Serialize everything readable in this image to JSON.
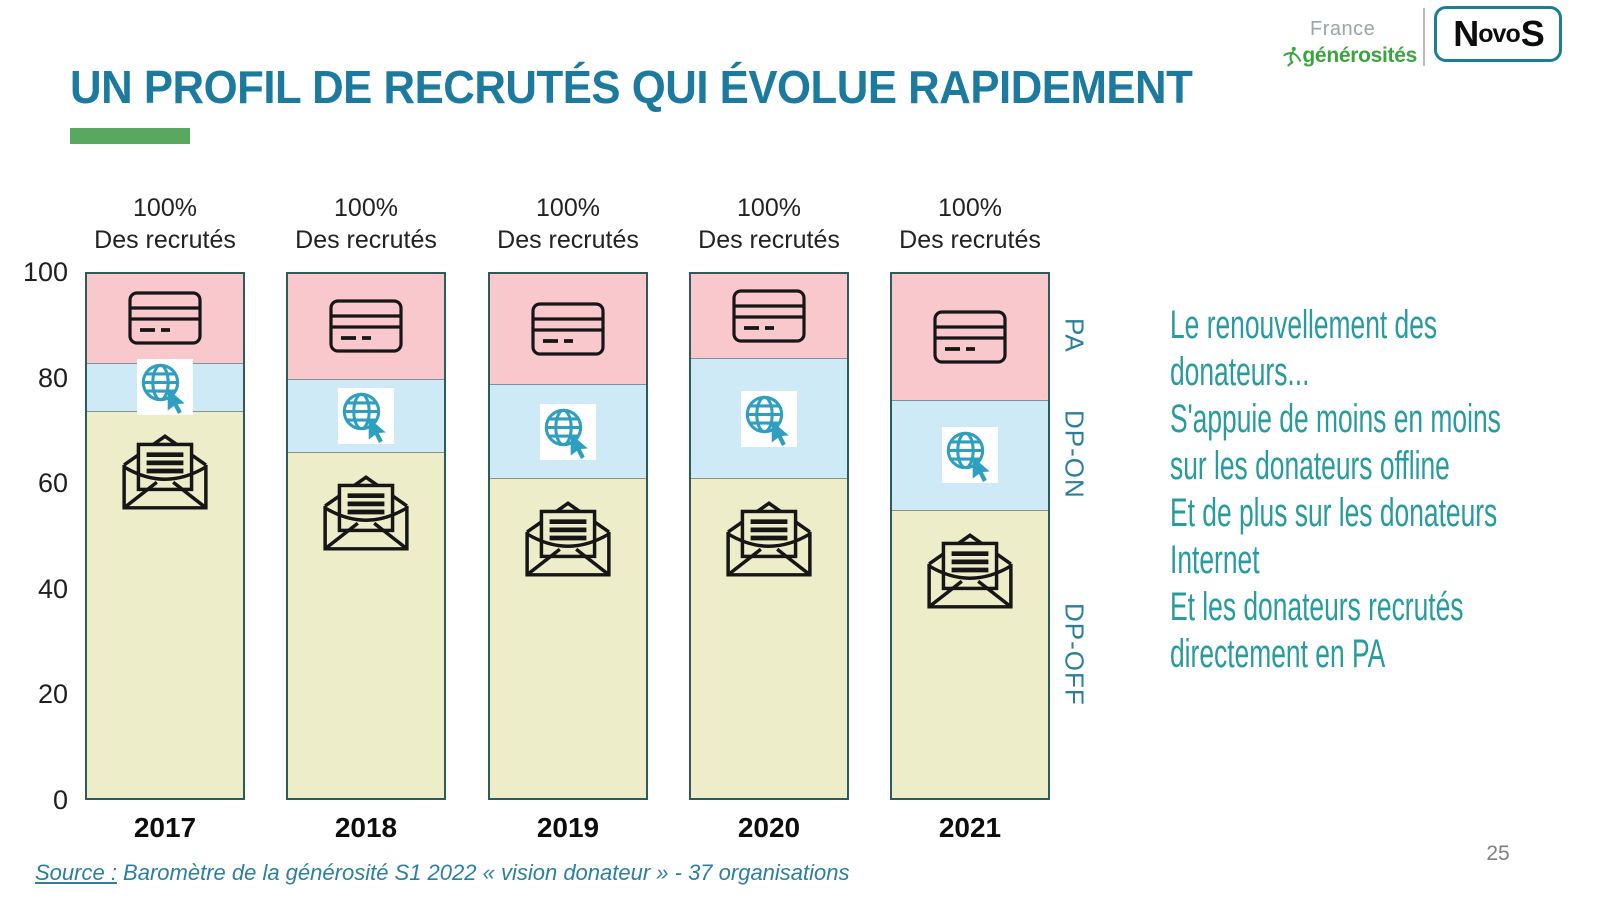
{
  "slide": {
    "title": "UN PROFIL DE RECRUTÉS QUI ÉVOLUE RAPIDEMENT",
    "page_number": "25",
    "source_label": "Source :",
    "source_text": " Baromètre de la générosité S1 2022 « vision donateur » - 37 organisations"
  },
  "logos": {
    "france": "France",
    "generosites": "générosités",
    "novos_parts": [
      "N",
      "ovo",
      "S"
    ]
  },
  "chart_data": {
    "type": "bar",
    "stacked": true,
    "title": "",
    "categories": [
      "2017",
      "2018",
      "2019",
      "2020",
      "2021"
    ],
    "series": [
      {
        "name": "DP-OFF",
        "icon": "open-envelope",
        "color": "#ededc9",
        "values": [
          74,
          66,
          61,
          61,
          55
        ]
      },
      {
        "name": "DP-ON",
        "icon": "globe-click",
        "color": "#cfeaf7",
        "values": [
          9,
          14,
          18,
          23,
          21
        ]
      },
      {
        "name": "PA",
        "icon": "credit-card",
        "color": "#f9c8cd",
        "values": [
          17,
          20,
          21,
          16,
          24
        ]
      }
    ],
    "bar_top_label_line1": "100%",
    "bar_top_label_line2": "Des recrutés",
    "y_ticks": [
      0,
      20,
      40,
      60,
      80,
      100
    ],
    "ylim": [
      0,
      100
    ],
    "right_labels": [
      "PA",
      "DP-ON",
      "DP-OFF"
    ],
    "legend_position": "right",
    "grid": false
  },
  "annotation": {
    "lines": [
      "Le renouvellement des",
      "donateurs...",
      "S'appuie de moins en moins",
      "sur les donateurs offline",
      "Et de plus sur les donateurs",
      "Internet",
      "Et les donateurs recrutés",
      "directement en PA"
    ]
  },
  "colors": {
    "title_teal": "#1b7a9e",
    "accent_green": "#5aa85f",
    "annotation_teal": "#279b9e",
    "side_label_teal": "#2c7f9b",
    "source_teal": "#2c7f9e",
    "logo_green": "#3ba43f",
    "logo_gray": "#9aa5a5",
    "novos_border_teal": "#1b7f93",
    "pa_pink": "#f9c8cd",
    "dpon_blue": "#cfeaf7",
    "dpoff_yellow": "#ededc9",
    "bar_border": "#2e5b58",
    "globe_teal": "#2f9fc0",
    "page_number_gray": "#7f7f7f"
  }
}
